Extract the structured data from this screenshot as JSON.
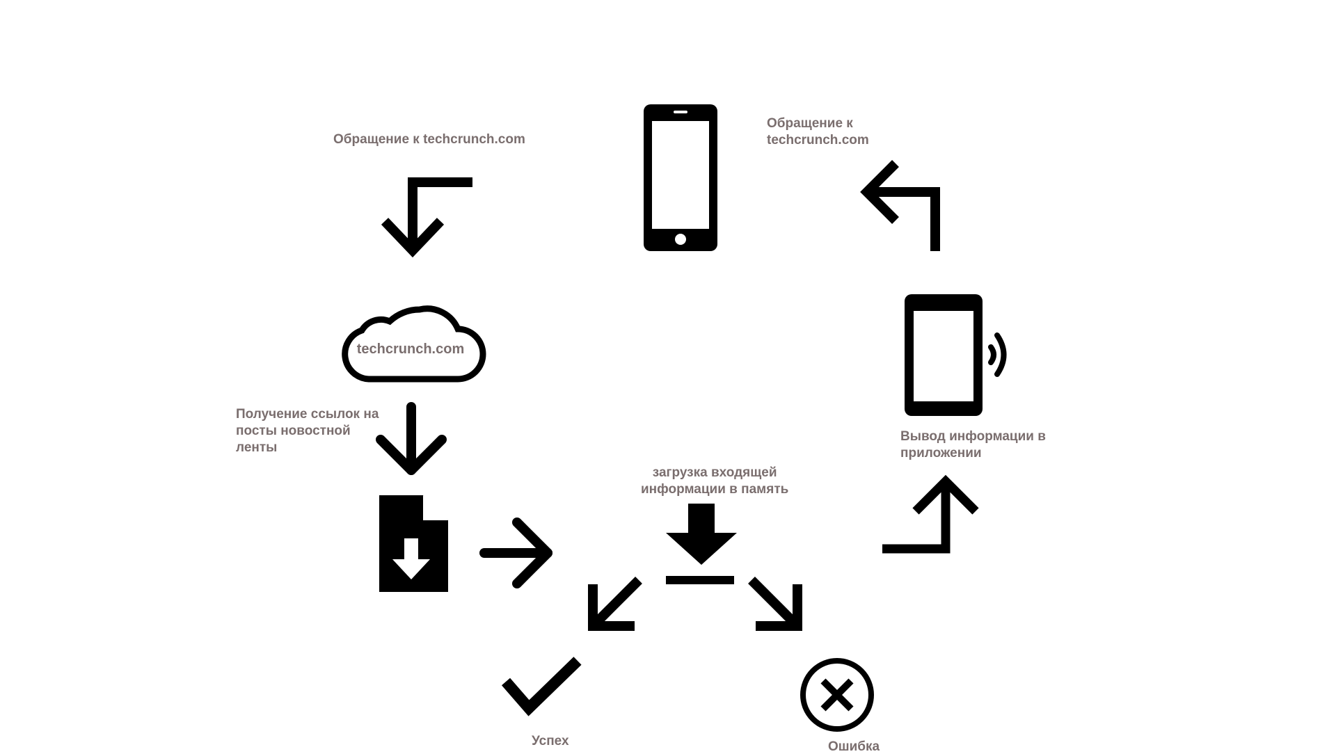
{
  "diagram": {
    "colors": {
      "icon": "#000000",
      "label": "#7a6e6e",
      "background": "#ffffff"
    },
    "nodes": [
      {
        "id": "phone",
        "icon": "smartphone-icon"
      },
      {
        "id": "cloud",
        "icon": "cloud-icon",
        "text": "techcrunch.com"
      },
      {
        "id": "file",
        "icon": "file-download-icon"
      },
      {
        "id": "download",
        "icon": "download-icon"
      },
      {
        "id": "success",
        "icon": "checkmark-icon",
        "text": "Успех"
      },
      {
        "id": "error",
        "icon": "error-circle-icon",
        "text": "Ошибка"
      },
      {
        "id": "display",
        "icon": "phone-vibrate-icon"
      }
    ],
    "labels": {
      "request_left": "Обращение к techcrunch.com",
      "request_right": "Обращение к\ntechcrunch.com",
      "get_links": "Получение ссылок на\nпосты новостной\nленты",
      "load_memory": "загрузка входящей\nинформации в память",
      "output": "Вывод информации в\nприложении"
    }
  }
}
